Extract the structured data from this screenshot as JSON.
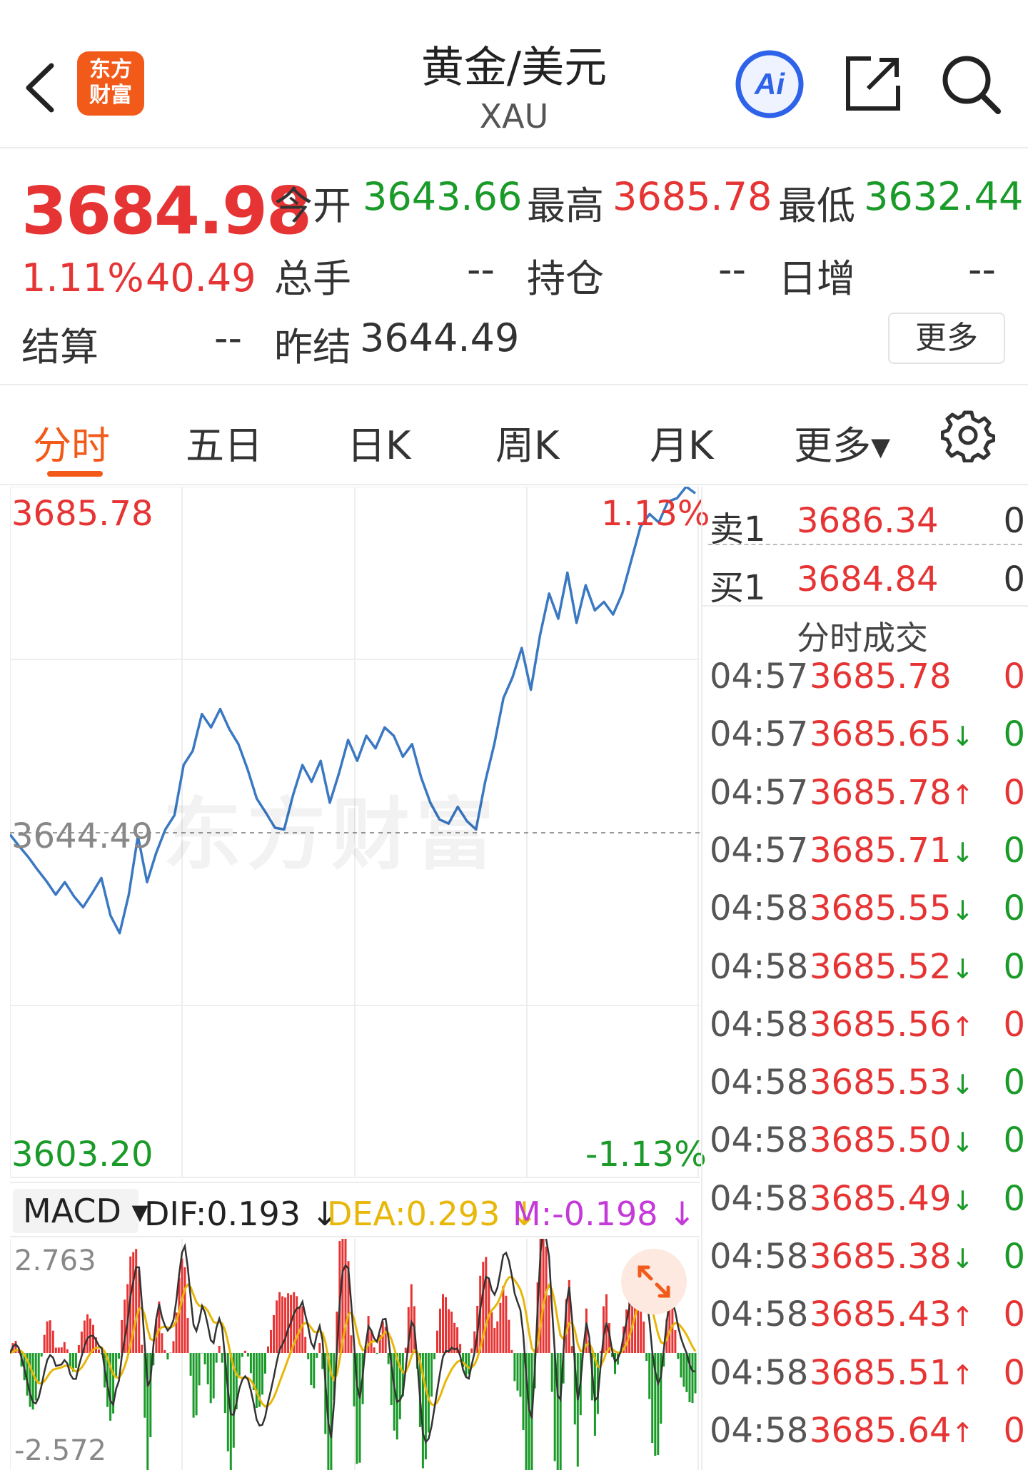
{
  "header": {
    "title": "黄金/美元",
    "subtitle": "XAU",
    "logo_text": "东方财富",
    "back_icon": "chevron-left-icon",
    "ai_icon": "ai-icon",
    "share_icon": "share-icon",
    "search_icon": "search-icon"
  },
  "quote": {
    "last_price": "3684.98",
    "change_pct": "1.11%",
    "change_abs": "40.49",
    "open_label": "今开",
    "open_value": "3643.66",
    "high_label": "最高",
    "high_value": "3685.78",
    "low_label": "最低",
    "low_value": "3632.44",
    "volume_label": "总手",
    "volume_value": "--",
    "oi_label": "持仓",
    "oi_value": "--",
    "daily_inc_label": "日增",
    "daily_inc_value": "--",
    "settle_label": "结算",
    "settle_value": "--",
    "prev_settle_label": "昨结",
    "prev_settle_value": "3644.49",
    "more_label": "更多"
  },
  "tabs": [
    {
      "label": "分时",
      "active": true
    },
    {
      "label": "五日"
    },
    {
      "label": "日K"
    },
    {
      "label": "周K"
    },
    {
      "label": "月K"
    },
    {
      "label": "更多▾"
    }
  ],
  "chart": {
    "high": "3685.78",
    "high_pct": "1.13%",
    "low": "3603.20",
    "low_pct": "-1.13%",
    "base": "3644.49",
    "watermark": "东方财富"
  },
  "chart_data": {
    "type": "line",
    "series": [
      {
        "values": [
          3644.2,
          3642.8,
          3641.5,
          3640.0,
          3638.6,
          3637.0,
          3638.5,
          3636.8,
          3635.5,
          3637.2,
          3639.0,
          3634.5,
          3632.4,
          3637.0,
          3644.0,
          3638.5,
          3642.0,
          3644.8,
          3646.5,
          3652.5,
          3654.2,
          3658.6,
          3657.0,
          3659.2,
          3656.8,
          3655.0,
          3652.0,
          3648.5,
          3646.8,
          3645.0,
          3644.8,
          3649.0,
          3652.5,
          3650.5,
          3653.0,
          3648.0,
          3651.5,
          3655.5,
          3653.0,
          3656.0,
          3654.5,
          3657.0,
          3656.0,
          3653.5,
          3655.0,
          3651.0,
          3648.0,
          3646.0,
          3645.5,
          3647.5,
          3645.8,
          3644.8,
          3650.5,
          3655.0,
          3660.5,
          3663.0,
          3666.5,
          3661.5,
          3668.0,
          3673.0,
          3670.0,
          3675.5,
          3669.5,
          3674.0,
          3671.0,
          3672.0,
          3670.5,
          3673.0,
          3677.0,
          3681.0,
          3682.5,
          3681.5,
          3684.0,
          3684.4,
          3685.78,
          3684.98
        ]
      }
    ],
    "ylim": [
      3603.2,
      3685.78
    ]
  },
  "macd": {
    "selector_label": "MACD ▾",
    "dif": "DIF:0.193 ↓",
    "dea": "DEA:0.293 ↓",
    "m": "M:-0.198 ↓",
    "max": "2.763",
    "min": "-2.572",
    "expand_icon": "expand-icon"
  },
  "orderbook": {
    "ask_label": "卖1",
    "ask_price": "3686.34",
    "ask_vol": "0",
    "bid_label": "买1",
    "bid_price": "3684.84",
    "bid_vol": "0",
    "ticks_title": "分时成交"
  },
  "ticks": [
    {
      "time": "04:57",
      "price": "3685.78",
      "arrow": "",
      "vol": "0",
      "vol_color": "#e63434"
    },
    {
      "time": "04:57",
      "price": "3685.65",
      "arrow": "↓",
      "vol": "0",
      "vol_color": "#1a9a28"
    },
    {
      "time": "04:57",
      "price": "3685.78",
      "arrow": "↑",
      "vol": "0",
      "vol_color": "#e63434"
    },
    {
      "time": "04:57",
      "price": "3685.71",
      "arrow": "↓",
      "vol": "0",
      "vol_color": "#1a9a28"
    },
    {
      "time": "04:58",
      "price": "3685.55",
      "arrow": "↓",
      "vol": "0",
      "vol_color": "#1a9a28"
    },
    {
      "time": "04:58",
      "price": "3685.52",
      "arrow": "↓",
      "vol": "0",
      "vol_color": "#1a9a28"
    },
    {
      "time": "04:58",
      "price": "3685.56",
      "arrow": "↑",
      "vol": "0",
      "vol_color": "#e63434"
    },
    {
      "time": "04:58",
      "price": "3685.53",
      "arrow": "↓",
      "vol": "0",
      "vol_color": "#1a9a28"
    },
    {
      "time": "04:58",
      "price": "3685.50",
      "arrow": "↓",
      "vol": "0",
      "vol_color": "#1a9a28"
    },
    {
      "time": "04:58",
      "price": "3685.49",
      "arrow": "↓",
      "vol": "0",
      "vol_color": "#1a9a28"
    },
    {
      "time": "04:58",
      "price": "3685.38",
      "arrow": "↓",
      "vol": "0",
      "vol_color": "#1a9a28"
    },
    {
      "time": "04:58",
      "price": "3685.43",
      "arrow": "↑",
      "vol": "0",
      "vol_color": "#e63434"
    },
    {
      "time": "04:58",
      "price": "3685.51",
      "arrow": "↑",
      "vol": "0",
      "vol_color": "#e63434"
    },
    {
      "time": "04:58",
      "price": "3685.64",
      "arrow": "↑",
      "vol": "0",
      "vol_color": "#e63434"
    }
  ],
  "colors": {
    "up": "#e63434",
    "down": "#1a9a28",
    "line": "#3a78c2",
    "accent": "#f25a1a",
    "dea": "#e7b70a",
    "m": "#c43ad8"
  }
}
